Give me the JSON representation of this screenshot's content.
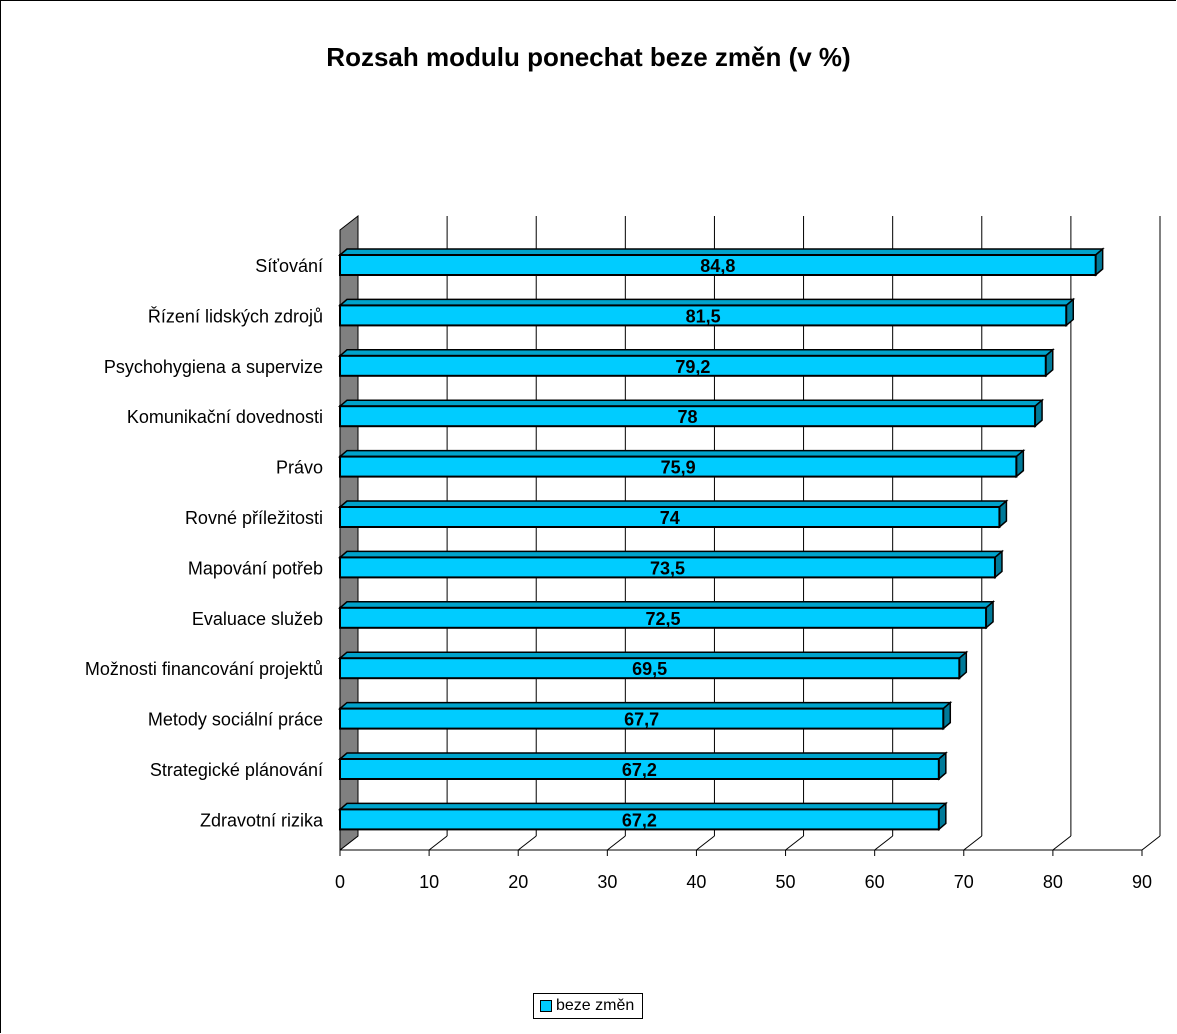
{
  "chart_data": {
    "type": "bar",
    "orientation": "horizontal",
    "title": "Rozsah modulu ponechat beze změn (v %)",
    "categories": [
      "Síťování",
      "Řízení lidských zdrojů",
      "Psychohygiena a supervize",
      "Komunikační dovednosti",
      "Právo",
      "Rovné příležitosti",
      "Mapování potřeb",
      "Evaluace služeb",
      "Možnosti financování projektů",
      "Metody sociální práce",
      "Strategické plánování",
      "Zdravotní rizika"
    ],
    "series": [
      {
        "name": "beze změn",
        "values": [
          84.8,
          81.5,
          79.2,
          78,
          75.9,
          74,
          73.5,
          72.5,
          69.5,
          67.7,
          67.2,
          67.2
        ],
        "value_labels": [
          "84,8",
          "81,5",
          "79,2",
          "78",
          "75,9",
          "74",
          "73,5",
          "72,5",
          "69,5",
          "67,7",
          "67,2",
          "67,2"
        ],
        "color": "#00ccff"
      }
    ],
    "x_ticks": [
      "0",
      "10",
      "20",
      "30",
      "40",
      "50",
      "60",
      "70",
      "80",
      "90"
    ],
    "xlim": [
      0,
      90
    ],
    "grid": "vertical",
    "legend_position": "bottom",
    "xlabel": "",
    "ylabel": ""
  }
}
